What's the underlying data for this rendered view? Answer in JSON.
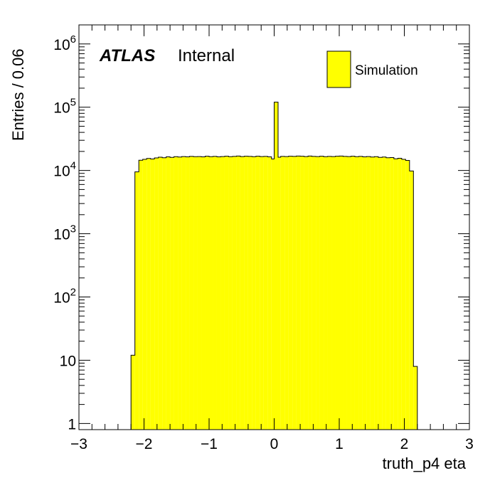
{
  "chart_data": {
    "type": "histogram",
    "xlabel": "truth_p4 eta",
    "ylabel": "Entries / 0.06",
    "xlim": [
      -3,
      3
    ],
    "ylim": [
      0.8,
      2000000
    ],
    "yscale": "log",
    "bin_width": 0.06,
    "fill_color": "#ffff00",
    "edge_color": "#000000",
    "grid": false,
    "x_ticks": [
      {
        "value": -3,
        "label": "−3"
      },
      {
        "value": -2,
        "label": "−2"
      },
      {
        "value": -1,
        "label": "−1"
      },
      {
        "value": 0,
        "label": "0"
      },
      {
        "value": 1,
        "label": "1"
      },
      {
        "value": 2,
        "label": "2"
      },
      {
        "value": 3,
        "label": "3"
      }
    ],
    "y_ticks": [
      {
        "value": 1,
        "base": "1",
        "exp": ""
      },
      {
        "value": 10,
        "base": "10",
        "exp": ""
      },
      {
        "value": 100,
        "base": "10",
        "exp": "2"
      },
      {
        "value": 1000,
        "base": "10",
        "exp": "3"
      },
      {
        "value": 10000,
        "base": "10",
        "exp": "4"
      },
      {
        "value": 100000,
        "base": "10",
        "exp": "5"
      },
      {
        "value": 1000000,
        "base": "10",
        "exp": "6"
      }
    ],
    "atlas_label": "ATLAS",
    "atlas_sublabel": "Internal",
    "legend": {
      "position": "top-right",
      "entries": [
        {
          "name": "Simulation",
          "color": "#ffff00"
        }
      ]
    },
    "series": [
      {
        "name": "Simulation",
        "bins": [
          [
            -2.2,
            -2.14,
            12
          ],
          [
            -2.14,
            -2.08,
            9500
          ],
          [
            -2.08,
            -2.02,
            14500
          ],
          [
            -2.02,
            -1.96,
            15000
          ],
          [
            -1.96,
            -1.9,
            15500
          ],
          [
            -1.9,
            -1.84,
            15200
          ],
          [
            -1.84,
            -1.78,
            15800
          ],
          [
            -1.78,
            -1.72,
            16200
          ],
          [
            -1.72,
            -1.66,
            15900
          ],
          [
            -1.66,
            -1.6,
            16400
          ],
          [
            -1.6,
            -1.54,
            16100
          ],
          [
            -1.54,
            -1.48,
            16500
          ],
          [
            -1.48,
            -1.42,
            16300
          ],
          [
            -1.42,
            -1.36,
            16600
          ],
          [
            -1.36,
            -1.3,
            16400
          ],
          [
            -1.3,
            -1.24,
            16700
          ],
          [
            -1.24,
            -1.18,
            16500
          ],
          [
            -1.18,
            -1.12,
            16600
          ],
          [
            -1.12,
            -1.06,
            16400
          ],
          [
            -1.06,
            -1.0,
            16800
          ],
          [
            -1.0,
            -0.94,
            16500
          ],
          [
            -0.94,
            -0.88,
            16700
          ],
          [
            -0.88,
            -0.82,
            16400
          ],
          [
            -0.82,
            -0.76,
            16600
          ],
          [
            -0.76,
            -0.7,
            16800
          ],
          [
            -0.7,
            -0.64,
            16500
          ],
          [
            -0.64,
            -0.58,
            16700
          ],
          [
            -0.58,
            -0.52,
            16900
          ],
          [
            -0.52,
            -0.46,
            16600
          ],
          [
            -0.46,
            -0.4,
            16800
          ],
          [
            -0.4,
            -0.34,
            16700
          ],
          [
            -0.34,
            -0.28,
            16500
          ],
          [
            -0.28,
            -0.22,
            16800
          ],
          [
            -0.22,
            -0.16,
            16600
          ],
          [
            -0.16,
            -0.1,
            16700
          ],
          [
            -0.1,
            -0.04,
            16400
          ],
          [
            -0.04,
            0.0,
            15200
          ],
          [
            0.0,
            0.06,
            120000
          ],
          [
            0.06,
            0.1,
            16200
          ],
          [
            0.1,
            0.16,
            16700
          ],
          [
            0.16,
            0.22,
            16600
          ],
          [
            0.22,
            0.28,
            16800
          ],
          [
            0.28,
            0.34,
            16700
          ],
          [
            0.34,
            0.4,
            16900
          ],
          [
            0.4,
            0.46,
            16800
          ],
          [
            0.46,
            0.52,
            16600
          ],
          [
            0.52,
            0.58,
            16900
          ],
          [
            0.58,
            0.64,
            16700
          ],
          [
            0.64,
            0.7,
            16600
          ],
          [
            0.7,
            0.76,
            16800
          ],
          [
            0.76,
            0.82,
            16500
          ],
          [
            0.82,
            0.88,
            16700
          ],
          [
            0.88,
            0.94,
            16600
          ],
          [
            0.94,
            1.0,
            16800
          ],
          [
            1.0,
            1.06,
            16900
          ],
          [
            1.06,
            1.12,
            16700
          ],
          [
            1.12,
            1.18,
            16600
          ],
          [
            1.18,
            1.24,
            16800
          ],
          [
            1.24,
            1.3,
            16500
          ],
          [
            1.3,
            1.36,
            16700
          ],
          [
            1.36,
            1.42,
            16400
          ],
          [
            1.42,
            1.48,
            16600
          ],
          [
            1.48,
            1.54,
            16300
          ],
          [
            1.54,
            1.6,
            16500
          ],
          [
            1.6,
            1.66,
            16100
          ],
          [
            1.66,
            1.72,
            16300
          ],
          [
            1.72,
            1.78,
            15900
          ],
          [
            1.78,
            1.84,
            16000
          ],
          [
            1.84,
            1.9,
            15300
          ],
          [
            1.9,
            1.96,
            15600
          ],
          [
            1.96,
            2.02,
            15000
          ],
          [
            2.02,
            2.08,
            14400
          ],
          [
            2.08,
            2.14,
            9800
          ],
          [
            2.14,
            2.2,
            8
          ]
        ]
      }
    ]
  }
}
